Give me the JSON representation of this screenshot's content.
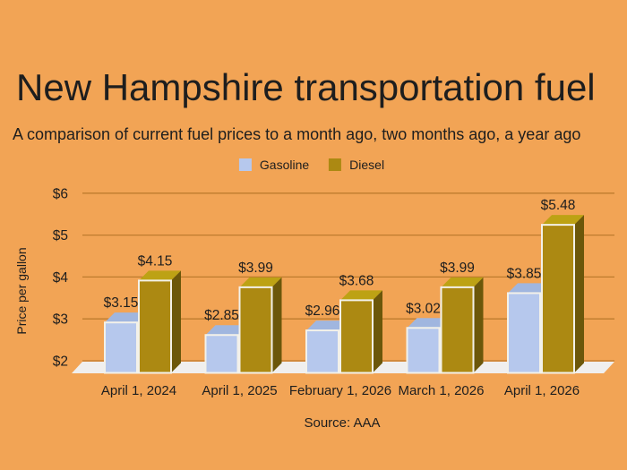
{
  "title": "New Hampshire transportation fuel",
  "subtitle": "A comparison of current fuel prices to a month ago, two months ago, a year ago",
  "source": "Source:  AAA",
  "legend": [
    {
      "label": "Gasoline",
      "color": "#B6C8ED"
    },
    {
      "label": "Diesel",
      "color": "#AC8912"
    }
  ],
  "colors": {
    "background": "#F2A455",
    "text": "#1E1E1E",
    "gridline": "#BE7B2E",
    "floor": "#F0EFEE",
    "bar_outline": "#F3F1E9",
    "gasoline": {
      "front": "#B6C8ED",
      "top": "#A0B6DF",
      "side": "#7C90B8"
    },
    "diesel": {
      "front": "#AC8912",
      "top": "#BDA214",
      "side": "#6C570A"
    }
  },
  "chart_data": {
    "type": "bar",
    "style": "3d-bars",
    "title": "New Hampshire transportation fuel",
    "subtitle": "A comparison of current fuel prices to a month ago, two months ago, a year ago",
    "categories": [
      "April 1, 2024",
      "April 1, 2025",
      "February 1, 2026",
      "March 1, 2026",
      "April 1, 2026"
    ],
    "series": [
      {
        "name": "Gasoline",
        "values": [
          3.15,
          2.85,
          2.96,
          3.02,
          3.85
        ]
      },
      {
        "name": "Diesel",
        "values": [
          4.15,
          3.99,
          3.68,
          3.99,
          5.48
        ]
      }
    ],
    "data_labels": {
      "Gasoline": [
        "$3.15",
        "$2.85",
        "$2.96",
        "$3.02",
        "$3.85"
      ],
      "Diesel": [
        "$4.15",
        "$3.99",
        "$3.68",
        "$3.99",
        "$5.48"
      ]
    },
    "xlabel": "",
    "ylabel": "Price per gallon",
    "ylim": [
      2,
      6
    ],
    "yticks": [
      2,
      3,
      4,
      5,
      6
    ],
    "ytick_labels": [
      "$2",
      "$3",
      "$4",
      "$5",
      "$6"
    ],
    "grid": true,
    "legend_position": "top",
    "source": "Source:  AAA"
  }
}
